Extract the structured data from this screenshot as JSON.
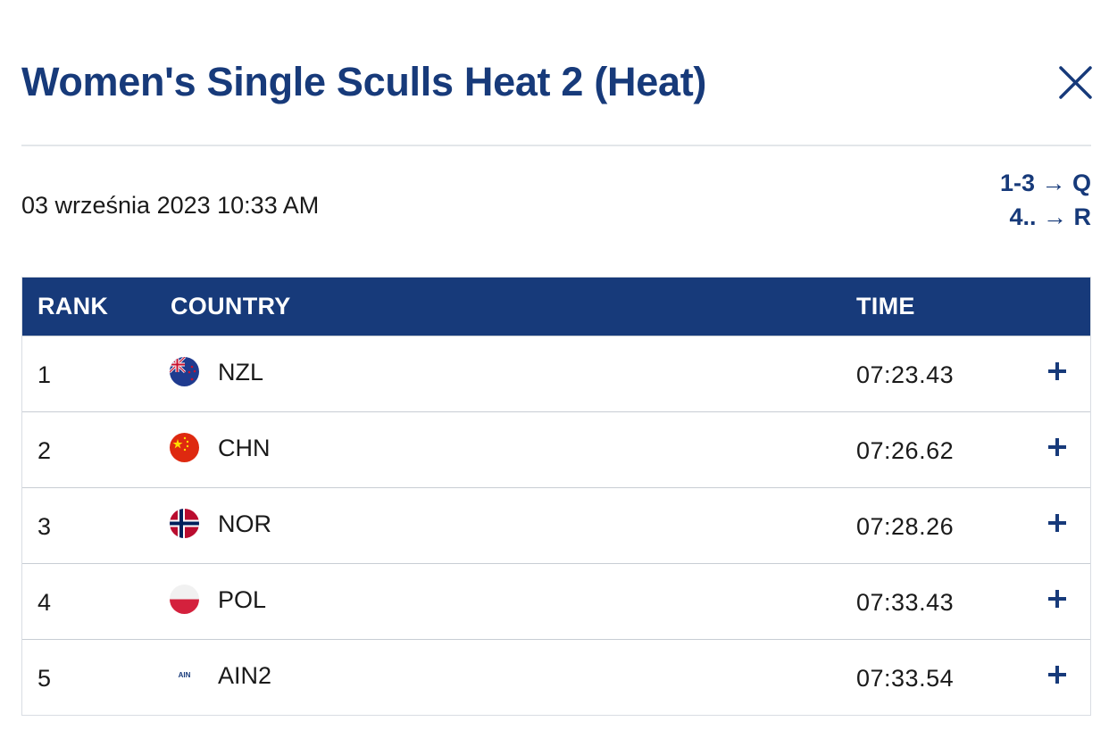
{
  "header": {
    "title": "Women's Single Sculls Heat 2 (Heat)"
  },
  "race": {
    "date_time": "03 września 2023 10:33 AM",
    "progression": [
      "1-3 → Q",
      "4.. → R"
    ]
  },
  "table": {
    "headers": {
      "rank": "RANK",
      "country": "COUNTRY",
      "time": "TIME"
    },
    "rows": [
      {
        "rank": "1",
        "country": "NZL",
        "time": "07:23.43",
        "flag": "nzl-flag-icon"
      },
      {
        "rank": "2",
        "country": "CHN",
        "time": "07:26.62",
        "flag": "chn-flag-icon"
      },
      {
        "rank": "3",
        "country": "NOR",
        "time": "07:28.26",
        "flag": "nor-flag-icon"
      },
      {
        "rank": "4",
        "country": "POL",
        "time": "07:33.43",
        "flag": "pol-flag-icon"
      },
      {
        "rank": "5",
        "country": "AIN2",
        "time": "07:33.54",
        "flag": "ain-flag-icon",
        "flag_text": "AIN"
      }
    ]
  },
  "icons": {
    "close": "close-icon",
    "expand": "plus-icon"
  },
  "colors": {
    "brand": "#173a7a",
    "divider": "#e3e6ea",
    "row_border": "#c8cdd4"
  }
}
